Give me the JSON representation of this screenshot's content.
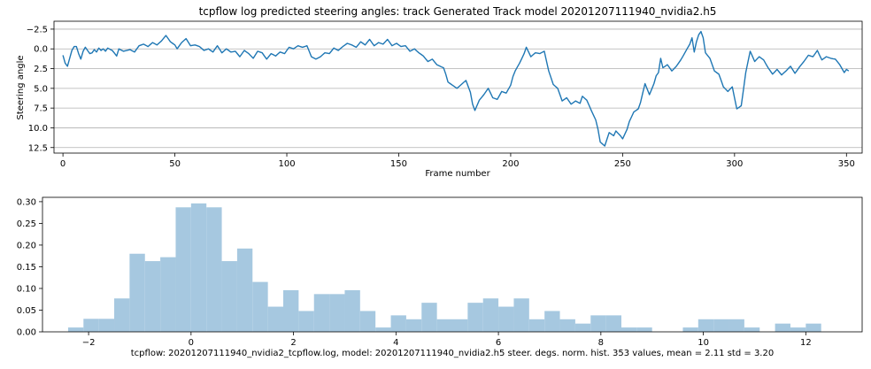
{
  "chart_data": [
    {
      "type": "line",
      "title": "tcpflow log predicted steering angles: track Generated Track model 20201207111940_nvidia2.h5",
      "xlabel": "Frame number",
      "ylabel": "Steering angle",
      "xlim": [
        -4,
        357
      ],
      "ylim": [
        13.2,
        -3.5
      ],
      "y_inverted": true,
      "grid": "horizontal",
      "xticks": [
        0,
        50,
        100,
        150,
        200,
        250,
        300,
        350
      ],
      "yticks": [
        -2.5,
        0.0,
        2.5,
        5.0,
        7.5,
        10.0,
        12.5
      ],
      "xtick_labels": [
        "0",
        "50",
        "100",
        "150",
        "200",
        "250",
        "300",
        "350"
      ],
      "ytick_labels": [
        "−2.5",
        "0.0",
        "2.5",
        "5.0",
        "7.5",
        "10.0",
        "12.5"
      ],
      "color": "#1f77b4",
      "anchors": [
        [
          0,
          0.8
        ],
        [
          1,
          1.8
        ],
        [
          2,
          2.2
        ],
        [
          3,
          1.2
        ],
        [
          4,
          0.2
        ],
        [
          5,
          -0.3
        ],
        [
          6,
          -0.3
        ],
        [
          7,
          0.6
        ],
        [
          8,
          1.3
        ],
        [
          9,
          0.3
        ],
        [
          10,
          -0.2
        ],
        [
          11,
          0.2
        ],
        [
          12,
          0.6
        ],
        [
          13,
          0.5
        ],
        [
          14,
          0.1
        ],
        [
          15,
          0.4
        ],
        [
          16,
          -0.1
        ],
        [
          17,
          0.2
        ],
        [
          18,
          0.0
        ],
        [
          19,
          0.3
        ],
        [
          20,
          -0.1
        ],
        [
          22,
          0.2
        ],
        [
          24,
          0.9
        ],
        [
          25,
          0.0
        ],
        [
          27,
          0.3
        ],
        [
          30,
          0.1
        ],
        [
          32,
          0.4
        ],
        [
          34,
          -0.4
        ],
        [
          36,
          -0.6
        ],
        [
          38,
          -0.3
        ],
        [
          40,
          -0.8
        ],
        [
          42,
          -0.5
        ],
        [
          44,
          -1.0
        ],
        [
          46,
          -1.7
        ],
        [
          48,
          -0.9
        ],
        [
          50,
          -0.5
        ],
        [
          51,
          0.0
        ],
        [
          53,
          -0.8
        ],
        [
          55,
          -1.3
        ],
        [
          57,
          -0.4
        ],
        [
          59,
          -0.5
        ],
        [
          61,
          -0.3
        ],
        [
          63,
          0.2
        ],
        [
          65,
          0.0
        ],
        [
          67,
          0.4
        ],
        [
          69,
          -0.4
        ],
        [
          71,
          0.5
        ],
        [
          73,
          0.0
        ],
        [
          75,
          0.4
        ],
        [
          77,
          0.3
        ],
        [
          79,
          1.0
        ],
        [
          81,
          0.2
        ],
        [
          83,
          0.6
        ],
        [
          85,
          1.2
        ],
        [
          87,
          0.3
        ],
        [
          89,
          0.5
        ],
        [
          91,
          1.3
        ],
        [
          93,
          0.6
        ],
        [
          95,
          0.9
        ],
        [
          97,
          0.4
        ],
        [
          99,
          0.6
        ],
        [
          101,
          -0.2
        ],
        [
          103,
          0.0
        ],
        [
          105,
          -0.4
        ],
        [
          107,
          -0.2
        ],
        [
          109,
          -0.4
        ],
        [
          111,
          1.0
        ],
        [
          113,
          1.3
        ],
        [
          115,
          1.0
        ],
        [
          117,
          0.5
        ],
        [
          119,
          0.6
        ],
        [
          121,
          -0.1
        ],
        [
          123,
          0.2
        ],
        [
          125,
          -0.3
        ],
        [
          127,
          -0.7
        ],
        [
          129,
          -0.5
        ],
        [
          131,
          -0.2
        ],
        [
          133,
          -0.9
        ],
        [
          135,
          -0.5
        ],
        [
          137,
          -1.2
        ],
        [
          139,
          -0.4
        ],
        [
          141,
          -0.8
        ],
        [
          143,
          -0.6
        ],
        [
          145,
          -1.2
        ],
        [
          147,
          -0.4
        ],
        [
          149,
          -0.7
        ],
        [
          151,
          -0.3
        ],
        [
          153,
          -0.4
        ],
        [
          155,
          0.3
        ],
        [
          157,
          0.0
        ],
        [
          159,
          0.5
        ],
        [
          161,
          0.9
        ],
        [
          163,
          1.6
        ],
        [
          165,
          1.3
        ],
        [
          167,
          2.0
        ],
        [
          170,
          2.4
        ],
        [
          171,
          3.2
        ],
        [
          172,
          4.2
        ],
        [
          174,
          4.6
        ],
        [
          176,
          5.0
        ],
        [
          178,
          4.5
        ],
        [
          180,
          4.0
        ],
        [
          182,
          5.5
        ],
        [
          183,
          7.0
        ],
        [
          184,
          7.8
        ],
        [
          186,
          6.5
        ],
        [
          188,
          5.8
        ],
        [
          190,
          5.0
        ],
        [
          192,
          6.2
        ],
        [
          194,
          6.4
        ],
        [
          196,
          5.4
        ],
        [
          198,
          5.6
        ],
        [
          200,
          4.6
        ],
        [
          201,
          3.5
        ],
        [
          202,
          2.8
        ],
        [
          204,
          1.8
        ],
        [
          206,
          0.6
        ],
        [
          207,
          -0.2
        ],
        [
          209,
          1.0
        ],
        [
          211,
          0.5
        ],
        [
          213,
          0.6
        ],
        [
          215,
          0.3
        ],
        [
          217,
          2.8
        ],
        [
          219,
          4.5
        ],
        [
          221,
          5.0
        ],
        [
          223,
          6.6
        ],
        [
          225,
          6.2
        ],
        [
          227,
          7.0
        ],
        [
          229,
          6.6
        ],
        [
          231,
          6.9
        ],
        [
          232,
          6.0
        ],
        [
          234,
          6.5
        ],
        [
          236,
          7.8
        ],
        [
          238,
          9.0
        ],
        [
          239,
          10.2
        ],
        [
          240,
          11.8
        ],
        [
          242,
          12.3
        ],
        [
          244,
          10.6
        ],
        [
          246,
          11.0
        ],
        [
          247,
          10.4
        ],
        [
          249,
          11.0
        ],
        [
          250,
          11.4
        ],
        [
          252,
          10.2
        ],
        [
          253,
          9.2
        ],
        [
          255,
          8.0
        ],
        [
          257,
          7.6
        ],
        [
          258,
          6.8
        ],
        [
          260,
          4.4
        ],
        [
          262,
          5.8
        ],
        [
          264,
          4.4
        ],
        [
          265,
          3.4
        ],
        [
          266,
          3.0
        ],
        [
          267,
          1.2
        ],
        [
          268,
          2.4
        ],
        [
          270,
          2.0
        ],
        [
          272,
          2.8
        ],
        [
          274,
          2.2
        ],
        [
          276,
          1.4
        ],
        [
          278,
          0.4
        ],
        [
          280,
          -0.6
        ],
        [
          281,
          -1.4
        ],
        [
          282,
          0.4
        ],
        [
          283,
          -0.9
        ],
        [
          284,
          -1.8
        ],
        [
          285,
          -2.2
        ],
        [
          286,
          -1.4
        ],
        [
          287,
          0.5
        ],
        [
          289,
          1.2
        ],
        [
          291,
          2.8
        ],
        [
          293,
          3.2
        ],
        [
          295,
          4.8
        ],
        [
          297,
          5.4
        ],
        [
          299,
          4.8
        ],
        [
          301,
          7.6
        ],
        [
          303,
          7.2
        ],
        [
          305,
          3.0
        ],
        [
          307,
          0.3
        ],
        [
          309,
          1.6
        ],
        [
          311,
          1.0
        ],
        [
          313,
          1.4
        ],
        [
          315,
          2.4
        ],
        [
          317,
          3.2
        ],
        [
          319,
          2.6
        ],
        [
          321,
          3.3
        ],
        [
          323,
          2.8
        ],
        [
          325,
          2.2
        ],
        [
          327,
          3.1
        ],
        [
          329,
          2.3
        ],
        [
          331,
          1.6
        ],
        [
          333,
          0.8
        ],
        [
          335,
          1.0
        ],
        [
          337,
          0.2
        ],
        [
          339,
          1.4
        ],
        [
          341,
          1.0
        ],
        [
          343,
          1.2
        ],
        [
          345,
          1.3
        ],
        [
          347,
          2.0
        ],
        [
          349,
          3.0
        ],
        [
          350,
          2.6
        ],
        [
          351,
          2.8
        ]
      ]
    },
    {
      "type": "bar",
      "xlabel": "tcpflow: 20201207111940_nvidia2_tcpflow.log, model: 20201207111940_nvidia2.h5 steer. degs. norm. hist. 353 values, mean = 2.11 std = 3.20",
      "xlim": [
        -2.9,
        13.1
      ],
      "ylim": [
        0,
        0.31
      ],
      "grid": false,
      "xticks": [
        -2,
        0,
        2,
        4,
        6,
        8,
        10,
        12
      ],
      "yticks": [
        0,
        0.05,
        0.1,
        0.15,
        0.2,
        0.25,
        0.3
      ],
      "xtick_labels": [
        "−2",
        "0",
        "2",
        "4",
        "6",
        "8",
        "10",
        "12"
      ],
      "ytick_labels": [
        "0.00",
        "0.05",
        "0.10",
        "0.15",
        "0.20",
        "0.25",
        "0.30"
      ],
      "bin_width": 0.3,
      "color": "#a6c8e0",
      "bins": [
        [
          -2.4,
          0.01
        ],
        [
          -2.1,
          0.03
        ],
        [
          -1.8,
          0.03
        ],
        [
          -1.5,
          0.077
        ],
        [
          -1.2,
          0.18
        ],
        [
          -0.9,
          0.163
        ],
        [
          -0.6,
          0.172
        ],
        [
          -0.3,
          0.287
        ],
        [
          0.0,
          0.296
        ],
        [
          0.3,
          0.287
        ],
        [
          0.6,
          0.163
        ],
        [
          0.9,
          0.192
        ],
        [
          1.2,
          0.115
        ],
        [
          1.5,
          0.058
        ],
        [
          1.8,
          0.096
        ],
        [
          2.1,
          0.048
        ],
        [
          2.4,
          0.087
        ],
        [
          2.7,
          0.087
        ],
        [
          3.0,
          0.096
        ],
        [
          3.3,
          0.048
        ],
        [
          3.6,
          0.01
        ],
        [
          3.9,
          0.038
        ],
        [
          4.2,
          0.029
        ],
        [
          4.5,
          0.067
        ],
        [
          4.8,
          0.029
        ],
        [
          5.1,
          0.029
        ],
        [
          5.4,
          0.067
        ],
        [
          5.7,
          0.077
        ],
        [
          6.0,
          0.058
        ],
        [
          6.3,
          0.077
        ],
        [
          6.6,
          0.029
        ],
        [
          6.9,
          0.048
        ],
        [
          7.2,
          0.029
        ],
        [
          7.5,
          0.019
        ],
        [
          7.8,
          0.038
        ],
        [
          8.1,
          0.038
        ],
        [
          8.4,
          0.01
        ],
        [
          8.7,
          0.01
        ],
        [
          9.0,
          0.0
        ],
        [
          9.3,
          0.0
        ],
        [
          9.6,
          0.01
        ],
        [
          9.9,
          0.029
        ],
        [
          10.2,
          0.029
        ],
        [
          10.5,
          0.029
        ],
        [
          10.8,
          0.01
        ],
        [
          11.1,
          0.0
        ],
        [
          11.4,
          0.019
        ],
        [
          11.7,
          0.01
        ],
        [
          12.0,
          0.019
        ]
      ]
    }
  ]
}
